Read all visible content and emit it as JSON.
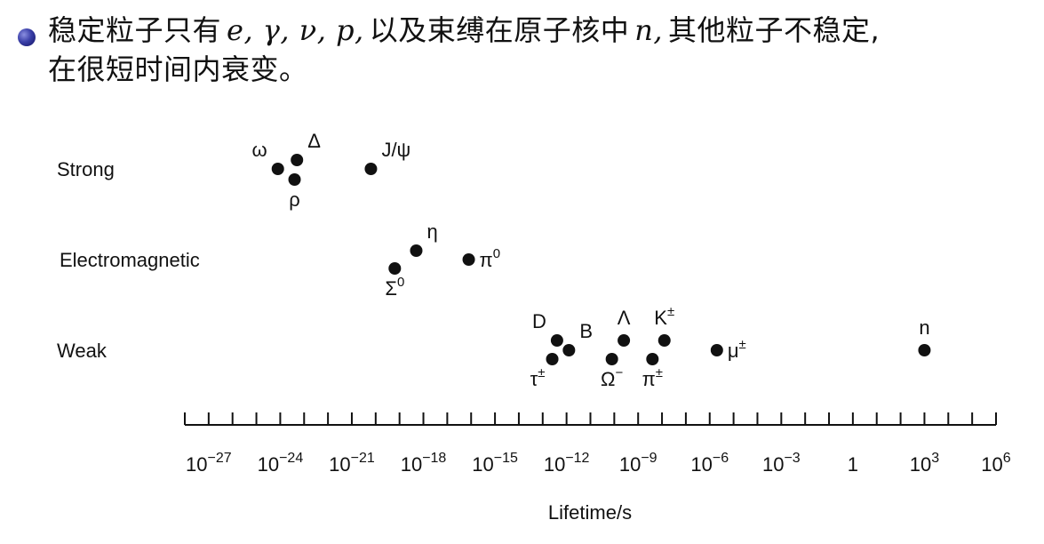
{
  "bullet": {
    "line1_part1": "稳定粒子只有",
    "line1_math1": "e, γ, ν, p,",
    "line1_part2": "以及束缚在原子核中",
    "line1_math2": "n,",
    "line1_part3": "其他粒子不稳定,",
    "line2": "在很短时间内衰变。"
  },
  "chart_data": {
    "type": "scatter",
    "xlabel": "Lifetime/s",
    "xscale": "log",
    "xlim_exp": [
      -28,
      6
    ],
    "ticks": [
      {
        "exp": -27,
        "label": "10",
        "sup": "−27"
      },
      {
        "exp": -24,
        "label": "10",
        "sup": "−24"
      },
      {
        "exp": -21,
        "label": "10",
        "sup": "−21"
      },
      {
        "exp": -18,
        "label": "10",
        "sup": "−18"
      },
      {
        "exp": -15,
        "label": "10",
        "sup": "−15"
      },
      {
        "exp": -12,
        "label": "10",
        "sup": "−12"
      },
      {
        "exp": -9,
        "label": "10",
        "sup": "−9"
      },
      {
        "exp": -6,
        "label": "10",
        "sup": "−6"
      },
      {
        "exp": -3,
        "label": "10",
        "sup": "−3"
      },
      {
        "exp": 0,
        "label": "1",
        "sup": ""
      },
      {
        "exp": 3,
        "label": "10",
        "sup": "3"
      },
      {
        "exp": 6,
        "label": "10",
        "sup": "6"
      }
    ],
    "categories": [
      "Strong",
      "Electromagnetic",
      "Weak"
    ],
    "points": [
      {
        "name": "ω",
        "sup": "",
        "exp": -24.1,
        "cat": "Strong",
        "dy": 0,
        "lab": "tl"
      },
      {
        "name": "Δ",
        "sup": "",
        "exp": -23.3,
        "cat": "Strong",
        "dy": -10,
        "lab": "tr"
      },
      {
        "name": "ρ",
        "sup": "",
        "exp": -23.4,
        "cat": "Strong",
        "dy": 12,
        "lab": "b"
      },
      {
        "name": "J/ψ",
        "sup": "",
        "exp": -20.2,
        "cat": "Strong",
        "dy": 0,
        "lab": "tr"
      },
      {
        "name": "η",
        "sup": "",
        "exp": -18.3,
        "cat": "Electromagnetic",
        "dy": -10,
        "lab": "tr"
      },
      {
        "name": "Σ",
        "sup": "0",
        "exp": -19.2,
        "cat": "Electromagnetic",
        "dy": 10,
        "lab": "b"
      },
      {
        "name": "π",
        "sup": "0",
        "exp": -16.1,
        "cat": "Electromagnetic",
        "dy": 0,
        "lab": "r"
      },
      {
        "name": "D",
        "sup": "",
        "exp": -12.4,
        "cat": "Weak",
        "dy": -11,
        "lab": "tl"
      },
      {
        "name": "B",
        "sup": "",
        "exp": -11.9,
        "cat": "Weak",
        "dy": 0,
        "lab": "tr"
      },
      {
        "name": "τ",
        "sup": "±",
        "exp": -12.6,
        "cat": "Weak",
        "dy": 10,
        "lab": "bl"
      },
      {
        "name": "Λ",
        "sup": "",
        "exp": -9.6,
        "cat": "Weak",
        "dy": -11,
        "lab": "t"
      },
      {
        "name": "Ω",
        "sup": "−",
        "exp": -10.1,
        "cat": "Weak",
        "dy": 10,
        "lab": "b"
      },
      {
        "name": "K",
        "sup": "±",
        "exp": -7.9,
        "cat": "Weak",
        "dy": -11,
        "lab": "t"
      },
      {
        "name": "π",
        "sup": "±",
        "exp": -8.4,
        "cat": "Weak",
        "dy": 10,
        "lab": "b"
      },
      {
        "name": "μ",
        "sup": "±",
        "exp": -5.7,
        "cat": "Weak",
        "dy": 0,
        "lab": "r"
      },
      {
        "name": "n",
        "sup": "",
        "exp": 3.0,
        "cat": "Weak",
        "dy": 0,
        "lab": "t"
      }
    ]
  }
}
